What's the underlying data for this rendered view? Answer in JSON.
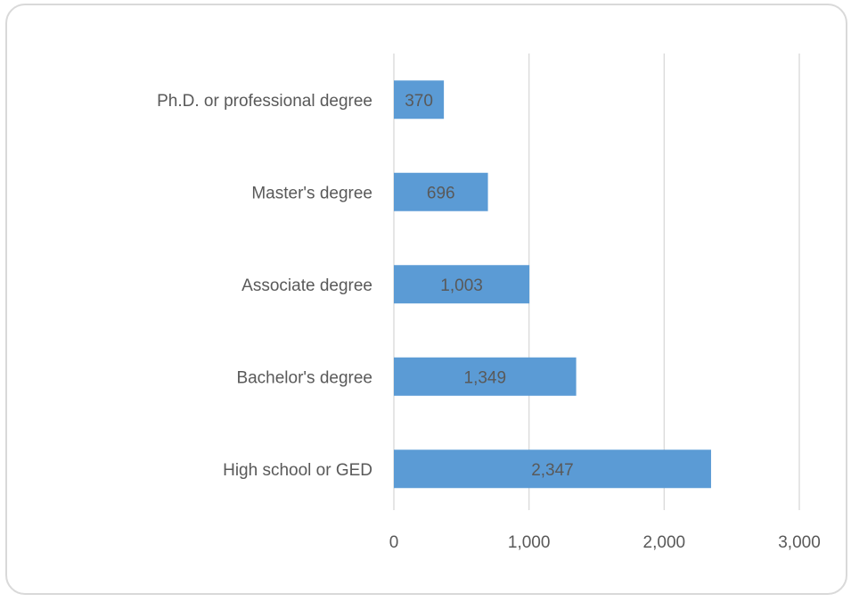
{
  "chart_data": {
    "type": "bar",
    "orientation": "horizontal",
    "categories": [
      "Ph.D. or professional degree",
      "Master's degree",
      "Associate degree",
      "Bachelor's degree",
      "High school or GED"
    ],
    "values": [
      370,
      696,
      1003,
      1349,
      2347
    ],
    "data_labels": [
      "370",
      "696",
      "1,003",
      "1,349",
      "2,347"
    ],
    "xlim": [
      0,
      3000
    ],
    "x_ticks": [
      0,
      1000,
      2000,
      3000
    ],
    "x_tick_labels": [
      "0",
      "1,000",
      "2,000",
      "3,000"
    ],
    "title": "",
    "xlabel": "",
    "ylabel": "",
    "grid": "vertical",
    "legend": "none",
    "colors": {
      "bar": "#5b9bd5",
      "gridline": "#d9d9d9",
      "text": "#595959",
      "frame": "#d9d9d9"
    }
  }
}
